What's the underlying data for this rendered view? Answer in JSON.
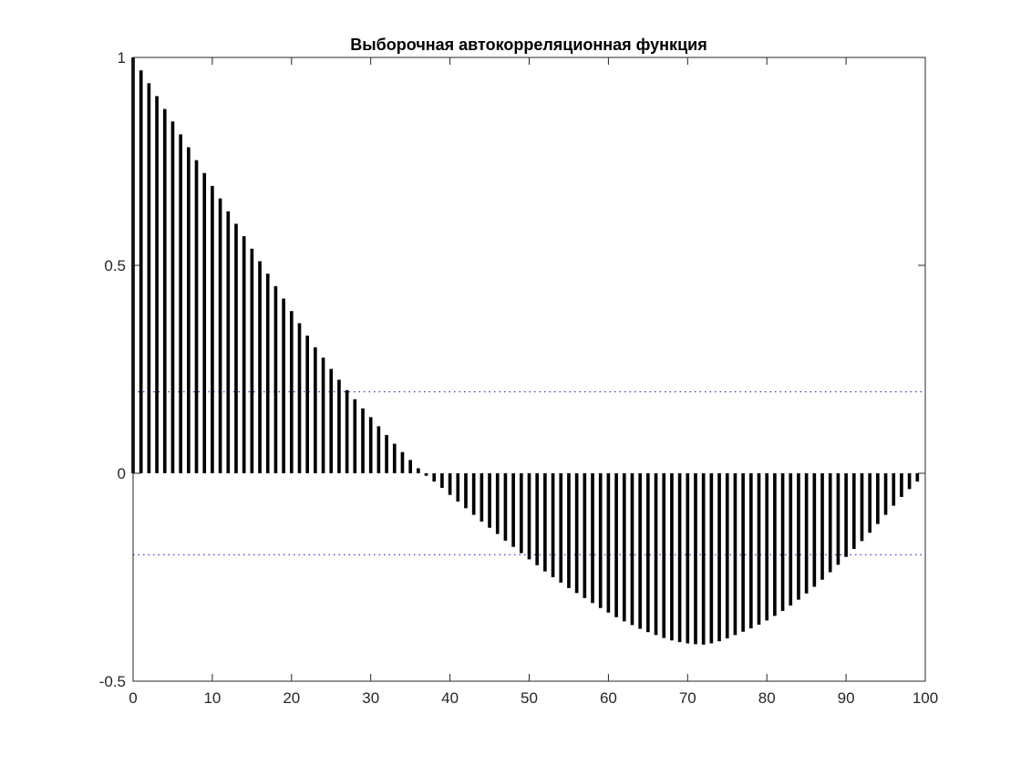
{
  "chart_data": {
    "type": "bar",
    "title": "Выборочная автокорреляционная функция",
    "xlabel": "",
    "ylabel": "",
    "xlim": [
      0,
      100
    ],
    "ylim": [
      -0.5,
      1
    ],
    "x_ticks": [
      0,
      10,
      20,
      30,
      40,
      50,
      60,
      70,
      80,
      90,
      100
    ],
    "y_ticks": [
      -0.5,
      0,
      0.5,
      1
    ],
    "y_tick_labels": [
      "-0.5",
      "0",
      "0.5",
      "1"
    ],
    "grid": false,
    "box": true,
    "bar_color": "#000000",
    "confidence_bounds": {
      "values": [
        0.196,
        -0.196
      ],
      "color": "#3f3fbf",
      "style": "dotted"
    },
    "x": [
      0,
      1,
      2,
      3,
      4,
      5,
      6,
      7,
      8,
      9,
      10,
      11,
      12,
      13,
      14,
      15,
      16,
      17,
      18,
      19,
      20,
      21,
      22,
      23,
      24,
      25,
      26,
      27,
      28,
      29,
      30,
      31,
      32,
      33,
      34,
      35,
      36,
      37,
      38,
      39,
      40,
      41,
      42,
      43,
      44,
      45,
      46,
      47,
      48,
      49,
      50,
      51,
      52,
      53,
      54,
      55,
      56,
      57,
      58,
      59,
      60,
      61,
      62,
      63,
      64,
      65,
      66,
      67,
      68,
      69,
      70,
      71,
      72,
      73,
      74,
      75,
      76,
      77,
      78,
      79,
      80,
      81,
      82,
      83,
      84,
      85,
      86,
      87,
      88,
      89,
      90,
      91,
      92,
      93,
      94,
      95,
      96,
      97,
      98,
      99
    ],
    "values": [
      1.0,
      0.969,
      0.938,
      0.907,
      0.876,
      0.846,
      0.815,
      0.784,
      0.753,
      0.722,
      0.691,
      0.661,
      0.63,
      0.6,
      0.57,
      0.54,
      0.51,
      0.48,
      0.45,
      0.42,
      0.39,
      0.361,
      0.331,
      0.303,
      0.278,
      0.251,
      0.225,
      0.2,
      0.178,
      0.156,
      0.135,
      0.113,
      0.092,
      0.071,
      0.051,
      0.032,
      0.012,
      -0.006,
      -0.02,
      -0.035,
      -0.052,
      -0.068,
      -0.084,
      -0.1,
      -0.116,
      -0.131,
      -0.146,
      -0.162,
      -0.177,
      -0.192,
      -0.207,
      -0.221,
      -0.236,
      -0.25,
      -0.263,
      -0.276,
      -0.288,
      -0.3,
      -0.312,
      -0.324,
      -0.335,
      -0.346,
      -0.356,
      -0.365,
      -0.374,
      -0.382,
      -0.389,
      -0.396,
      -0.402,
      -0.406,
      -0.409,
      -0.411,
      -0.412,
      -0.409,
      -0.404,
      -0.397,
      -0.389,
      -0.381,
      -0.373,
      -0.364,
      -0.354,
      -0.343,
      -0.331,
      -0.318,
      -0.304,
      -0.289,
      -0.273,
      -0.256,
      -0.238,
      -0.22,
      -0.201,
      -0.182,
      -0.163,
      -0.143,
      -0.122,
      -0.1,
      -0.078,
      -0.057,
      -0.038,
      -0.02
    ]
  }
}
